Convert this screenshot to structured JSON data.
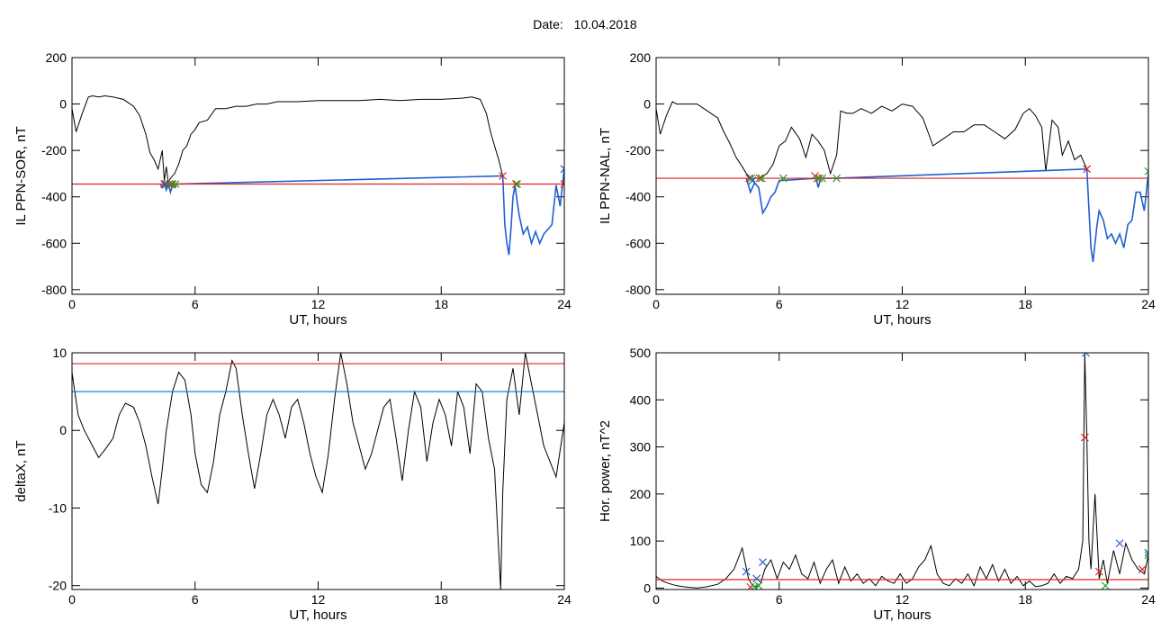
{
  "header": {
    "date_label": "Date:",
    "date_value": "10.04.2018"
  },
  "chart_data": [
    {
      "type": "line",
      "title": "",
      "xlabel": "UT, hours",
      "ylabel": "IL PPN-SOR, nT",
      "xlim": [
        0,
        24
      ],
      "ylim": [
        -820,
        200
      ],
      "xticks": [
        0,
        6,
        12,
        18,
        24
      ],
      "yticks": [
        -800,
        -600,
        -400,
        -200,
        0,
        200
      ],
      "threshold": {
        "value": -345,
        "color": "#dd2222"
      },
      "series": [
        {
          "color": "#000000",
          "x": [
            0,
            0.2,
            0.5,
            0.8,
            1.0,
            1.3,
            1.6,
            2.0,
            2.5,
            3.0,
            3.3,
            3.6,
            3.8,
            4.0,
            4.2,
            4.4,
            4.5,
            4.6,
            4.7,
            4.8,
            5.0,
            5.2,
            5.4,
            5.6,
            5.8,
            6.0,
            6.2,
            6.6,
            7.0,
            7.5,
            8.0,
            8.5,
            9.0,
            9.5,
            10.0,
            11.0,
            12.0,
            13.0,
            14.0,
            15.0,
            16.0,
            17.0,
            18.0,
            19.0,
            19.5,
            19.9,
            20.2,
            20.4,
            20.6,
            20.8,
            21.0
          ],
          "y": [
            -20,
            -120,
            -40,
            30,
            35,
            30,
            35,
            30,
            20,
            -10,
            -50,
            -130,
            -210,
            -240,
            -280,
            -200,
            -330,
            -270,
            -340,
            -320,
            -300,
            -260,
            -200,
            -180,
            -130,
            -110,
            -80,
            -70,
            -20,
            -20,
            -10,
            -10,
            0,
            0,
            10,
            10,
            15,
            15,
            15,
            20,
            15,
            20,
            20,
            25,
            30,
            20,
            -40,
            -120,
            -180,
            -240,
            -310
          ]
        },
        {
          "color": "#1f5fd0",
          "x": [
            4.3,
            4.4,
            4.5,
            4.6,
            4.7,
            4.8,
            4.9,
            5.0,
            5.1,
            21.0,
            21.1,
            21.2,
            21.3,
            21.4,
            21.5,
            21.6,
            21.7,
            21.8,
            21.9,
            22.0,
            22.2,
            22.4,
            22.6,
            22.8,
            23.0,
            23.2,
            23.4,
            23.6,
            23.8,
            24.0
          ],
          "y": [
            -345,
            -360,
            -340,
            -370,
            -345,
            -380,
            -350,
            -360,
            -345,
            -310,
            -520,
            -600,
            -650,
            -540,
            -400,
            -350,
            -420,
            -480,
            -520,
            -560,
            -530,
            -600,
            -550,
            -600,
            -560,
            -540,
            -520,
            -350,
            -440,
            -280
          ]
        }
      ],
      "markers": [
        {
          "color": "#dd2222",
          "x": [
            4.5,
            4.75,
            4.9,
            21.0,
            21.65,
            24.0
          ],
          "y": [
            -345,
            -345,
            -345,
            -310,
            -345,
            -345
          ]
        },
        {
          "color": "#22aa22",
          "x": [
            4.6,
            4.85,
            5.05,
            21.7
          ],
          "y": [
            -345,
            -345,
            -345,
            -345
          ]
        },
        {
          "color": "#1f5fd0",
          "x": [
            4.55,
            24.0
          ],
          "y": [
            -345,
            -280
          ]
        }
      ]
    },
    {
      "type": "line",
      "title": "",
      "xlabel": "UT, hours",
      "ylabel": "IL PPN-NAL, nT",
      "xlim": [
        0,
        24
      ],
      "ylim": [
        -820,
        200
      ],
      "xticks": [
        0,
        6,
        12,
        18,
        24
      ],
      "yticks": [
        -800,
        -600,
        -400,
        -200,
        0,
        200
      ],
      "threshold": {
        "value": -320,
        "color": "#dd2222"
      },
      "series": [
        {
          "color": "#000000",
          "x": [
            0,
            0.2,
            0.5,
            0.8,
            1.0,
            1.5,
            2.0,
            2.5,
            3.0,
            3.3,
            3.6,
            3.9,
            4.2,
            4.4,
            4.6,
            5.0,
            5.4,
            5.7,
            6.0,
            6.3,
            6.6,
            7.0,
            7.3,
            7.6,
            7.9,
            8.2,
            8.5,
            8.8,
            9.0,
            9.3,
            9.6,
            10.0,
            10.5,
            11.0,
            11.5,
            12.0,
            12.5,
            13.0,
            13.5,
            14.0,
            14.5,
            15.0,
            15.5,
            16.0,
            16.5,
            17.0,
            17.5,
            17.9,
            18.2,
            18.5,
            18.8,
            19.0,
            19.3,
            19.6,
            19.8,
            20.1,
            20.4,
            20.7,
            21.0
          ],
          "y": [
            -20,
            -130,
            -50,
            10,
            0,
            0,
            0,
            -30,
            -60,
            -120,
            -170,
            -230,
            -270,
            -300,
            -320,
            -320,
            -300,
            -260,
            -180,
            -160,
            -100,
            -150,
            -230,
            -130,
            -160,
            -200,
            -300,
            -220,
            -30,
            -40,
            -40,
            -20,
            -40,
            -10,
            -30,
            0,
            -10,
            -60,
            -180,
            -150,
            -120,
            -120,
            -90,
            -90,
            -120,
            -150,
            -110,
            -40,
            -20,
            -50,
            -100,
            -290,
            -70,
            -100,
            -220,
            -160,
            -240,
            -220,
            -280
          ]
        },
        {
          "color": "#1f5fd0",
          "x": [
            4.4,
            4.6,
            4.8,
            5.0,
            5.2,
            5.4,
            5.6,
            5.8,
            6.0,
            7.8,
            7.9,
            8.0,
            8.1,
            8.5,
            8.7,
            21.0,
            21.1,
            21.2,
            21.3,
            21.4,
            21.5,
            21.6,
            21.8,
            22.0,
            22.2,
            22.4,
            22.6,
            22.8,
            23.0,
            23.2,
            23.4,
            23.6,
            23.8,
            24.0
          ],
          "y": [
            -320,
            -380,
            -340,
            -360,
            -470,
            -440,
            -400,
            -380,
            -330,
            -320,
            -360,
            -330,
            -320,
            -320,
            -320,
            -280,
            -450,
            -620,
            -680,
            -600,
            -520,
            -460,
            -500,
            -580,
            -560,
            -600,
            -560,
            -620,
            -520,
            -500,
            -380,
            -380,
            -460,
            -300
          ]
        }
      ],
      "markers": [
        {
          "color": "#dd2222",
          "x": [
            4.55,
            5.05,
            7.75,
            7.95,
            21.0
          ],
          "y": [
            -320,
            -320,
            -310,
            -320,
            -280
          ]
        },
        {
          "color": "#22aa22",
          "x": [
            4.65,
            5.15,
            6.2,
            7.85,
            8.1,
            8.8,
            24.0
          ],
          "y": [
            -320,
            -320,
            -320,
            -320,
            -320,
            -320,
            -290
          ]
        },
        {
          "color": "#1f5fd0",
          "x": [
            4.7
          ],
          "y": [
            -330
          ]
        }
      ]
    },
    {
      "type": "line",
      "title": "",
      "xlabel": "UT, hours",
      "ylabel": "deltaX, nT",
      "xlim": [
        0,
        24
      ],
      "ylim": [
        -20.5,
        10
      ],
      "xticks": [
        0,
        6,
        12,
        18,
        24
      ],
      "yticks": [
        -20,
        -10,
        0,
        10
      ],
      "reference_lines": [
        {
          "value": 8.6,
          "color": "#dd2222"
        },
        {
          "value": 5.0,
          "color": "#1f7fd0"
        }
      ],
      "series": [
        {
          "color": "#000000",
          "x": [
            0,
            0.3,
            0.6,
            1.0,
            1.3,
            1.6,
            2.0,
            2.3,
            2.6,
            3.0,
            3.3,
            3.6,
            3.9,
            4.2,
            4.4,
            4.6,
            4.9,
            5.2,
            5.5,
            5.8,
            6.0,
            6.3,
            6.6,
            6.9,
            7.2,
            7.5,
            7.8,
            8.0,
            8.3,
            8.6,
            8.9,
            9.2,
            9.5,
            9.8,
            10.1,
            10.4,
            10.7,
            11.0,
            11.3,
            11.6,
            11.9,
            12.2,
            12.5,
            12.8,
            13.1,
            13.4,
            13.7,
            14.0,
            14.3,
            14.6,
            14.9,
            15.2,
            15.5,
            15.8,
            16.1,
            16.4,
            16.7,
            17.0,
            17.3,
            17.6,
            17.9,
            18.2,
            18.5,
            18.8,
            19.1,
            19.4,
            19.7,
            20.0,
            20.3,
            20.6,
            20.9,
            21.0,
            21.2,
            21.5,
            21.8,
            22.1,
            22.4,
            22.7,
            23.0,
            23.3,
            23.6,
            24.0
          ],
          "y": [
            7.5,
            2,
            0,
            -2,
            -3.5,
            -2.5,
            -1,
            2,
            3.5,
            3,
            1,
            -2,
            -6,
            -9.5,
            -5,
            0,
            5,
            7.5,
            6.5,
            2,
            -3,
            -7,
            -8,
            -4,
            2,
            5,
            9,
            8,
            2,
            -3,
            -7.5,
            -3,
            2,
            4,
            2,
            -1,
            3,
            4,
            1,
            -3,
            -6,
            -8,
            -3,
            4,
            10,
            6,
            1,
            -2,
            -5,
            -3,
            0,
            3,
            4,
            -1,
            -6.5,
            0,
            5,
            3,
            -4,
            1,
            4,
            2,
            -2,
            5,
            3,
            -3,
            6,
            5,
            -1,
            -5,
            -20.5,
            -8,
            4,
            8,
            2,
            10,
            6,
            2,
            -2,
            -4,
            -6,
            1
          ]
        }
      ]
    },
    {
      "type": "line",
      "title": "",
      "xlabel": "UT, hours",
      "ylabel": "Hor. power, nT^2",
      "xlim": [
        0,
        24
      ],
      "ylim": [
        -3,
        500
      ],
      "xticks": [
        0,
        6,
        12,
        18,
        24
      ],
      "yticks": [
        0,
        100,
        200,
        300,
        400,
        500
      ],
      "threshold": {
        "value": 18,
        "color": "#dd2222"
      },
      "series": [
        {
          "color": "#000000",
          "x": [
            0,
            0.3,
            0.6,
            1.0,
            1.5,
            2.0,
            2.5,
            3.0,
            3.4,
            3.8,
            4.2,
            4.5,
            4.7,
            4.9,
            5.1,
            5.3,
            5.6,
            5.9,
            6.2,
            6.5,
            6.8,
            7.1,
            7.4,
            7.7,
            8.0,
            8.3,
            8.6,
            8.9,
            9.2,
            9.5,
            9.8,
            10.1,
            10.4,
            10.7,
            11.0,
            11.3,
            11.6,
            11.9,
            12.2,
            12.5,
            12.8,
            13.1,
            13.4,
            13.7,
            14.0,
            14.3,
            14.6,
            14.9,
            15.2,
            15.5,
            15.8,
            16.1,
            16.4,
            16.7,
            17.0,
            17.3,
            17.6,
            17.9,
            18.2,
            18.5,
            18.8,
            19.1,
            19.4,
            19.7,
            20.0,
            20.3,
            20.6,
            20.8,
            20.9,
            21.0,
            21.1,
            21.2,
            21.4,
            21.6,
            21.8,
            22.0,
            22.3,
            22.6,
            22.9,
            23.2,
            23.5,
            23.8,
            24.0
          ],
          "y": [
            25,
            15,
            10,
            5,
            2,
            0,
            3,
            8,
            20,
            40,
            85,
            20,
            5,
            3,
            10,
            40,
            60,
            20,
            55,
            40,
            70,
            30,
            20,
            55,
            10,
            40,
            60,
            10,
            45,
            15,
            30,
            10,
            20,
            5,
            25,
            15,
            10,
            30,
            10,
            20,
            45,
            60,
            90,
            30,
            10,
            5,
            20,
            10,
            30,
            5,
            45,
            20,
            50,
            15,
            40,
            10,
            25,
            5,
            15,
            3,
            5,
            10,
            30,
            10,
            25,
            20,
            40,
            100,
            500,
            320,
            100,
            40,
            200,
            20,
            60,
            10,
            80,
            30,
            95,
            60,
            40,
            30,
            70
          ]
        }
      ],
      "markers": [
        {
          "color": "#dd2222",
          "x": [
            4.6,
            20.9,
            21.6,
            23.7
          ],
          "y": [
            2,
            320,
            35,
            40
          ]
        },
        {
          "color": "#22aa22",
          "x": [
            4.8,
            5.0,
            21.9,
            24.0
          ],
          "y": [
            3,
            5,
            5,
            70
          ]
        },
        {
          "color": "#1f5fd0",
          "x": [
            4.4,
            4.9,
            5.2,
            20.95,
            22.6,
            24.0
          ],
          "y": [
            35,
            20,
            55,
            500,
            95,
            75
          ]
        }
      ]
    }
  ]
}
